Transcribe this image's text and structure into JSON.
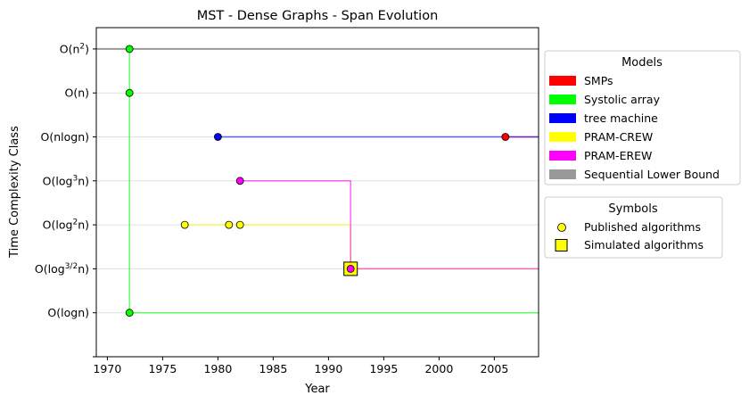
{
  "chart_data": {
    "type": "scatter",
    "title": "MST - Dense Graphs - Span Evolution",
    "xlabel": "Year",
    "ylabel": "Time Complexity Class",
    "xlim": [
      1969,
      2009
    ],
    "x_ticks": [
      1970,
      1975,
      1980,
      1985,
      1990,
      1995,
      2000,
      2005
    ],
    "y_categories": [
      "O(logn)",
      "O(log^{3/2}n)",
      "O(log^2 n)",
      "O(log^3 n)",
      "O(nlogn)",
      "O(n)",
      "O(n^2)"
    ],
    "grid": "horizontal",
    "sequential_lower_bound": {
      "y_level": 7,
      "color": "#999999"
    },
    "series": [
      {
        "name": "SMPs",
        "color": "#ff0000",
        "points": [
          {
            "x": 2006,
            "y": 5,
            "kind": "published"
          }
        ],
        "step_path": [
          [
            2006,
            5
          ],
          [
            2009,
            5
          ]
        ]
      },
      {
        "name": "Systolic array",
        "color": "#00ff00",
        "points": [
          {
            "x": 1972,
            "y": 7,
            "kind": "published"
          },
          {
            "x": 1972,
            "y": 6,
            "kind": "published"
          },
          {
            "x": 1972,
            "y": 1,
            "kind": "published"
          }
        ],
        "step_path": [
          [
            1972,
            7
          ],
          [
            1972,
            1
          ],
          [
            2009,
            1
          ]
        ]
      },
      {
        "name": "tree machine",
        "color": "#0000ff",
        "points": [
          {
            "x": 1980,
            "y": 5,
            "kind": "published"
          }
        ],
        "step_path": [
          [
            1980,
            5
          ],
          [
            2009,
            5
          ]
        ]
      },
      {
        "name": "PRAM-CREW",
        "color": "#ffff00",
        "points": [
          {
            "x": 1977,
            "y": 3,
            "kind": "published"
          },
          {
            "x": 1981,
            "y": 3,
            "kind": "published"
          },
          {
            "x": 1982,
            "y": 3,
            "kind": "published"
          },
          {
            "x": 1992,
            "y": 2,
            "kind": "simulated"
          }
        ],
        "step_path": [
          [
            1977,
            3
          ],
          [
            1992,
            3
          ],
          [
            1992,
            2
          ],
          [
            2009,
            2
          ]
        ]
      },
      {
        "name": "PRAM-EREW",
        "color": "#ff00ff",
        "points": [
          {
            "x": 1982,
            "y": 4,
            "kind": "published"
          },
          {
            "x": 1992,
            "y": 2,
            "kind": "published"
          }
        ],
        "step_path": [
          [
            1982,
            4
          ],
          [
            1992,
            4
          ],
          [
            1992,
            2
          ],
          [
            2009,
            2
          ]
        ]
      }
    ],
    "legend_models": {
      "title": "Models",
      "placement": "right",
      "entries": [
        {
          "label": "SMPs",
          "color": "#ff0000"
        },
        {
          "label": "Systolic array",
          "color": "#00ff00"
        },
        {
          "label": "tree machine",
          "color": "#0000ff"
        },
        {
          "label": "PRAM-CREW",
          "color": "#ffff00"
        },
        {
          "label": "PRAM-EREW",
          "color": "#ff00ff"
        },
        {
          "label": "Sequential Lower Bound",
          "color": "#999999"
        }
      ]
    },
    "legend_symbols": {
      "title": "Symbols",
      "placement": "right",
      "entries": [
        {
          "label": "Published algorithms",
          "symbol": "circle"
        },
        {
          "label": "Simulated algorithms",
          "symbol": "square"
        }
      ]
    }
  }
}
